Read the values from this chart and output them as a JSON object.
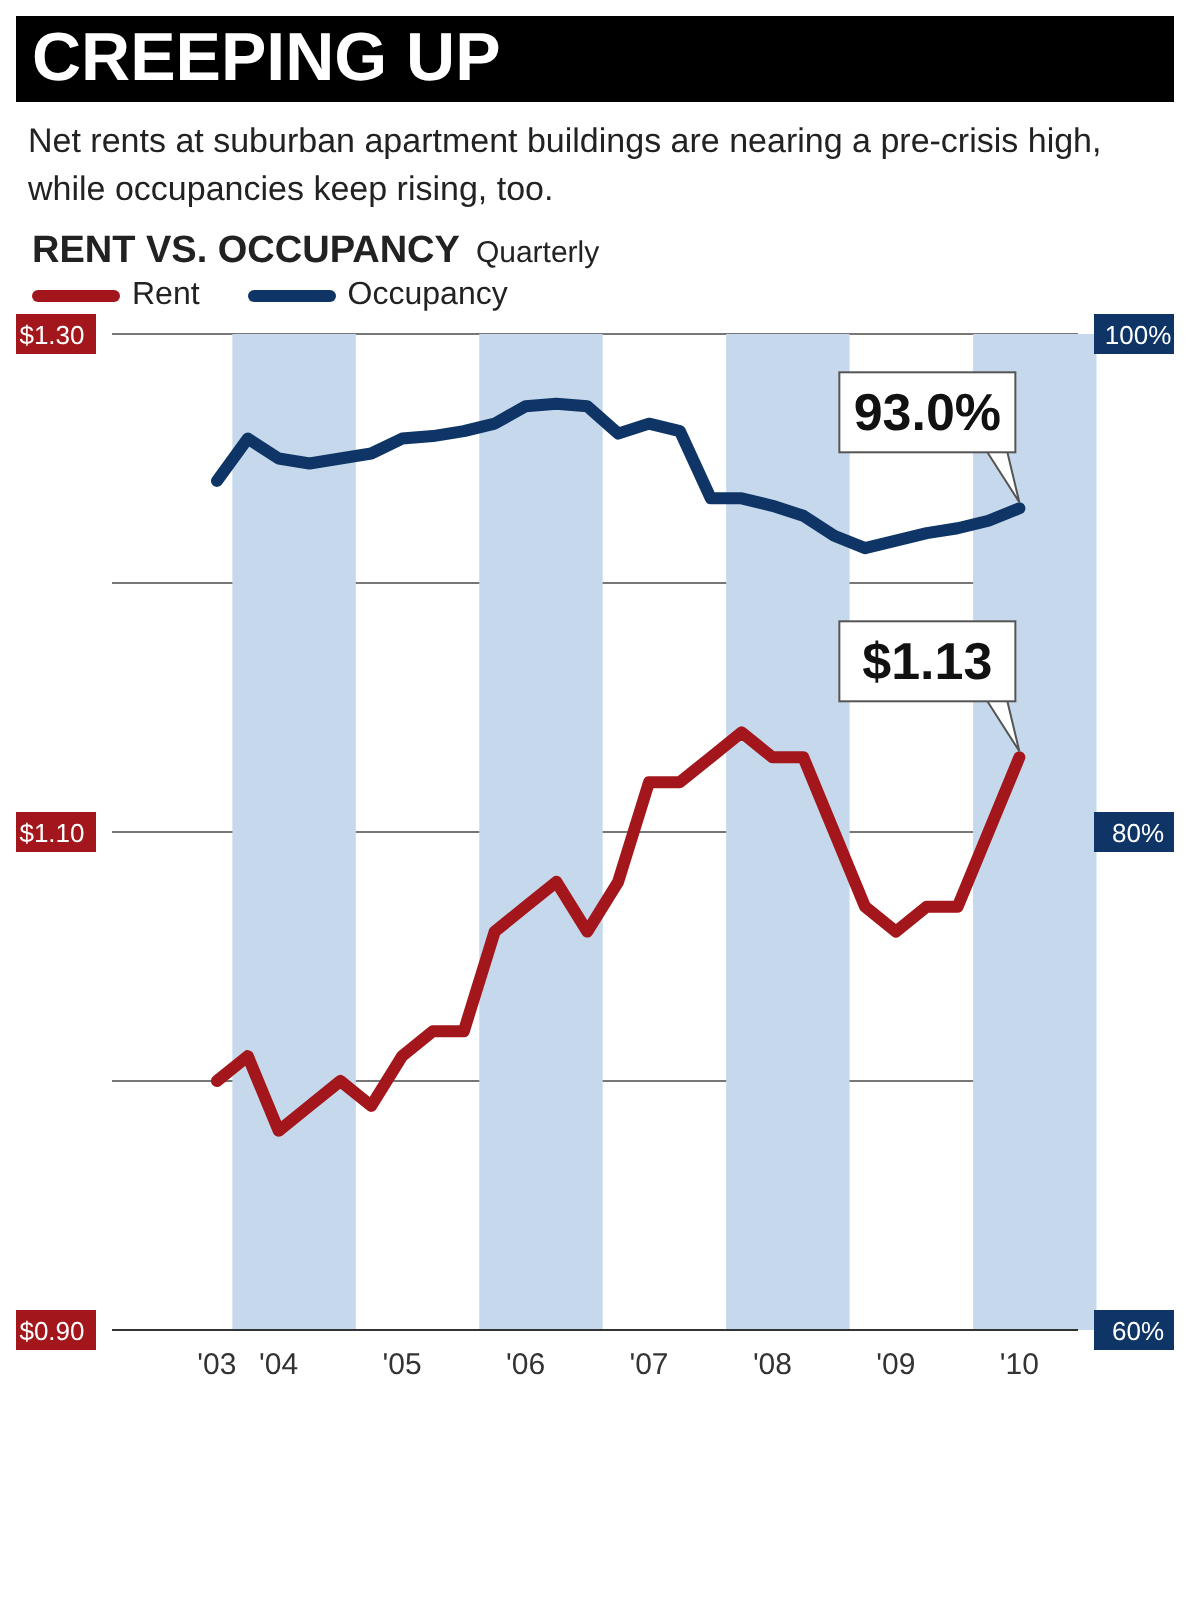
{
  "chart_data": {
    "type": "line",
    "title": "CREEPING UP",
    "subtitle": "Net rents at suburban apartment buildings are nearing a pre-crisis high, while occupancies keep rising, too.",
    "annotations": [
      "RENT VS. OCCUPANCY",
      "Quarterly"
    ],
    "categories": [
      "'03",
      null,
      "'04",
      null,
      null,
      null,
      "'05",
      null,
      null,
      null,
      "'06",
      null,
      null,
      null,
      "'07",
      null,
      null,
      null,
      "'08",
      null,
      null,
      null,
      "'09",
      null,
      null,
      null,
      "'10"
    ],
    "series": [
      {
        "name": "Rent",
        "color": "#a3161b",
        "values": [
          1.0,
          1.01,
          0.98,
          0.99,
          1.0,
          0.99,
          1.01,
          1.02,
          1.02,
          1.06,
          1.07,
          1.08,
          1.06,
          1.08,
          1.12,
          1.12,
          1.13,
          1.14,
          1.13,
          1.13,
          1.1,
          1.07,
          1.06,
          1.07,
          1.07,
          1.1,
          1.13
        ],
        "value_labels": [
          null,
          null,
          null,
          null,
          null,
          null,
          null,
          null,
          null,
          null,
          null,
          null,
          null,
          null,
          null,
          null,
          null,
          null,
          null,
          null,
          null,
          null,
          null,
          null,
          null,
          null,
          "$1.13"
        ]
      },
      {
        "name": "Occupancy",
        "color": "#0e3566",
        "axis": "y2",
        "values": [
          94.1,
          95.8,
          95.0,
          94.8,
          95.0,
          95.2,
          95.8,
          95.9,
          96.1,
          96.4,
          97.1,
          97.2,
          97.1,
          96.0,
          96.4,
          96.1,
          93.4,
          93.4,
          93.1,
          92.7,
          91.9,
          91.4,
          91.7,
          92.0,
          92.2,
          92.5,
          93.0
        ],
        "value_labels": [
          null,
          null,
          null,
          null,
          null,
          null,
          null,
          null,
          null,
          null,
          null,
          null,
          null,
          null,
          null,
          null,
          null,
          null,
          null,
          null,
          null,
          null,
          null,
          null,
          null,
          null,
          "93.0%"
        ]
      }
    ],
    "ylim": [
      0.9,
      1.3
    ],
    "yticks": [
      {
        "value": 0.9,
        "label": "$0.90"
      },
      {
        "value": 1.0,
        "label": null
      },
      {
        "value": 1.1,
        "label": "$1.10"
      },
      {
        "value": 1.2,
        "label": null
      },
      {
        "value": 1.3,
        "label": "$1.30"
      }
    ],
    "y2lim": [
      60,
      100
    ],
    "y2ticks": [
      {
        "value": 60,
        "label": "60%"
      },
      {
        "value": 70,
        "label": null
      },
      {
        "value": 80,
        "label": "80%"
      },
      {
        "value": 90,
        "label": null
      },
      {
        "value": 100,
        "label": "100%"
      }
    ],
    "grid": "y",
    "legend": "top left"
  }
}
